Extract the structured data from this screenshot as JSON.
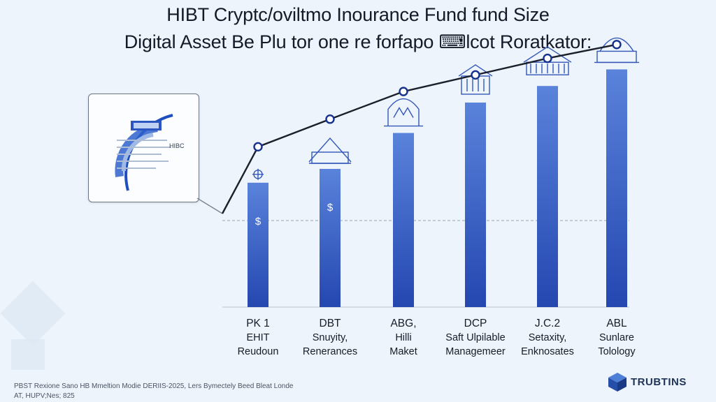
{
  "header": {
    "title": "HIBT Cryptc/oviltmo Inourance Fund fund Size",
    "subtitle": "Digital Asset Be Plu tor one re forfapo ⌨lcot Roratkator:"
  },
  "card": {
    "label": "HIBC"
  },
  "chart_data": {
    "type": "bar",
    "categories": [
      [
        "PK 1",
        "EHIT",
        "Reudoun"
      ],
      [
        "DBT",
        "Snuyity,",
        "Renerances"
      ],
      [
        "ABG,",
        "Hilli",
        "Maket"
      ],
      [
        "DCP",
        "Saft Ulpilable",
        "Managemeer"
      ],
      [
        "J.C.2",
        "Setaxity,",
        "Enknosates"
      ],
      [
        "ABL",
        "Sunlare",
        "Tolology"
      ]
    ],
    "bar_labels": [
      "$",
      "$",
      "",
      "",
      "",
      ""
    ],
    "series": [
      {
        "values": [
          45,
          50,
          63,
          74,
          80,
          86
        ]
      }
    ],
    "line_values": [
      58,
      68,
      78,
      84,
      90,
      95
    ],
    "ylim": [
      0,
      100
    ],
    "grid": false,
    "colors": {
      "bar_top": "#5a83db",
      "bar_bottom": "#2447b0",
      "line": "#1a1f2b",
      "marker": "#14318f"
    },
    "icons": [
      "gear-icon",
      "warehouse-icon",
      "building-icon",
      "bank-icon",
      "temple-icon",
      "dome-icon"
    ]
  },
  "footer": {
    "line1": "PBST Rexione Sano HB Mmeltion Modie DERIIS-2025, Lers Bymectely Beed Bleat Londe",
    "line2": "AT, HUPV;Nes; 825",
    "brand": "TRUBTINS",
    "brand_icon": "cube-icon"
  }
}
